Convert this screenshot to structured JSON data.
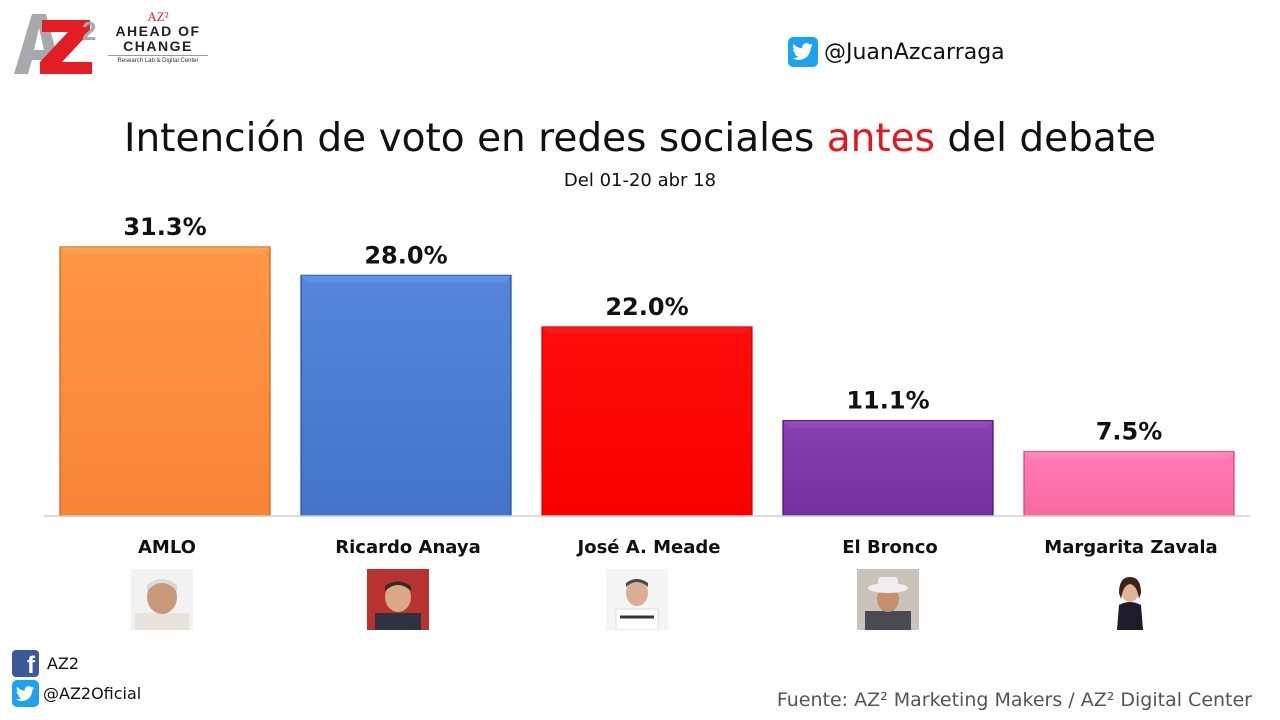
{
  "logo": {
    "mark": "AZ2",
    "superscript_label": "AZ²",
    "line1": "AHEAD OF",
    "line2": "CHANGE",
    "line3": "Research Lab & Digital Center"
  },
  "header": {
    "twitter_handle": "@JuanAzcarraga",
    "twitter_icon": "twitter-bird-icon"
  },
  "title": {
    "before": "Intención de voto en redes sociales ",
    "accent": "antes",
    "after": " del debate",
    "accent_color": "#e8161b"
  },
  "subtitle": "Del 01-20 abr 18",
  "chart_data": {
    "type": "bar",
    "categories": [
      "AMLO",
      "Ricardo Anaya",
      "José A. Meade",
      "El Bronco",
      "Margarita Zavala"
    ],
    "values": [
      31.3,
      28.0,
      22.0,
      11.1,
      7.5
    ],
    "value_labels": [
      "31.3%",
      "28.0%",
      "22.0%",
      "11.1%",
      "7.5%"
    ],
    "colors": [
      "#fe8a3c",
      "#4a7ad0",
      "#ff0000",
      "#7b35a5",
      "#ff6fa7"
    ],
    "ylim": [
      0,
      31.3
    ],
    "grid": false,
    "legend": "none"
  },
  "photos": [
    {
      "name": "AMLO",
      "icon": "candidate-photo"
    },
    {
      "name": "Ricardo Anaya",
      "icon": "candidate-photo"
    },
    {
      "name": "José A. Meade",
      "icon": "candidate-photo"
    },
    {
      "name": "El Bronco",
      "icon": "candidate-photo"
    },
    {
      "name": "Margarita Zavala",
      "icon": "candidate-photo"
    }
  ],
  "footer": {
    "facebook_label": "AZ2",
    "twitter_label": "@AZ2Oficial",
    "source": "Fuente: AZ² Marketing Makers / AZ² Digital Center"
  }
}
